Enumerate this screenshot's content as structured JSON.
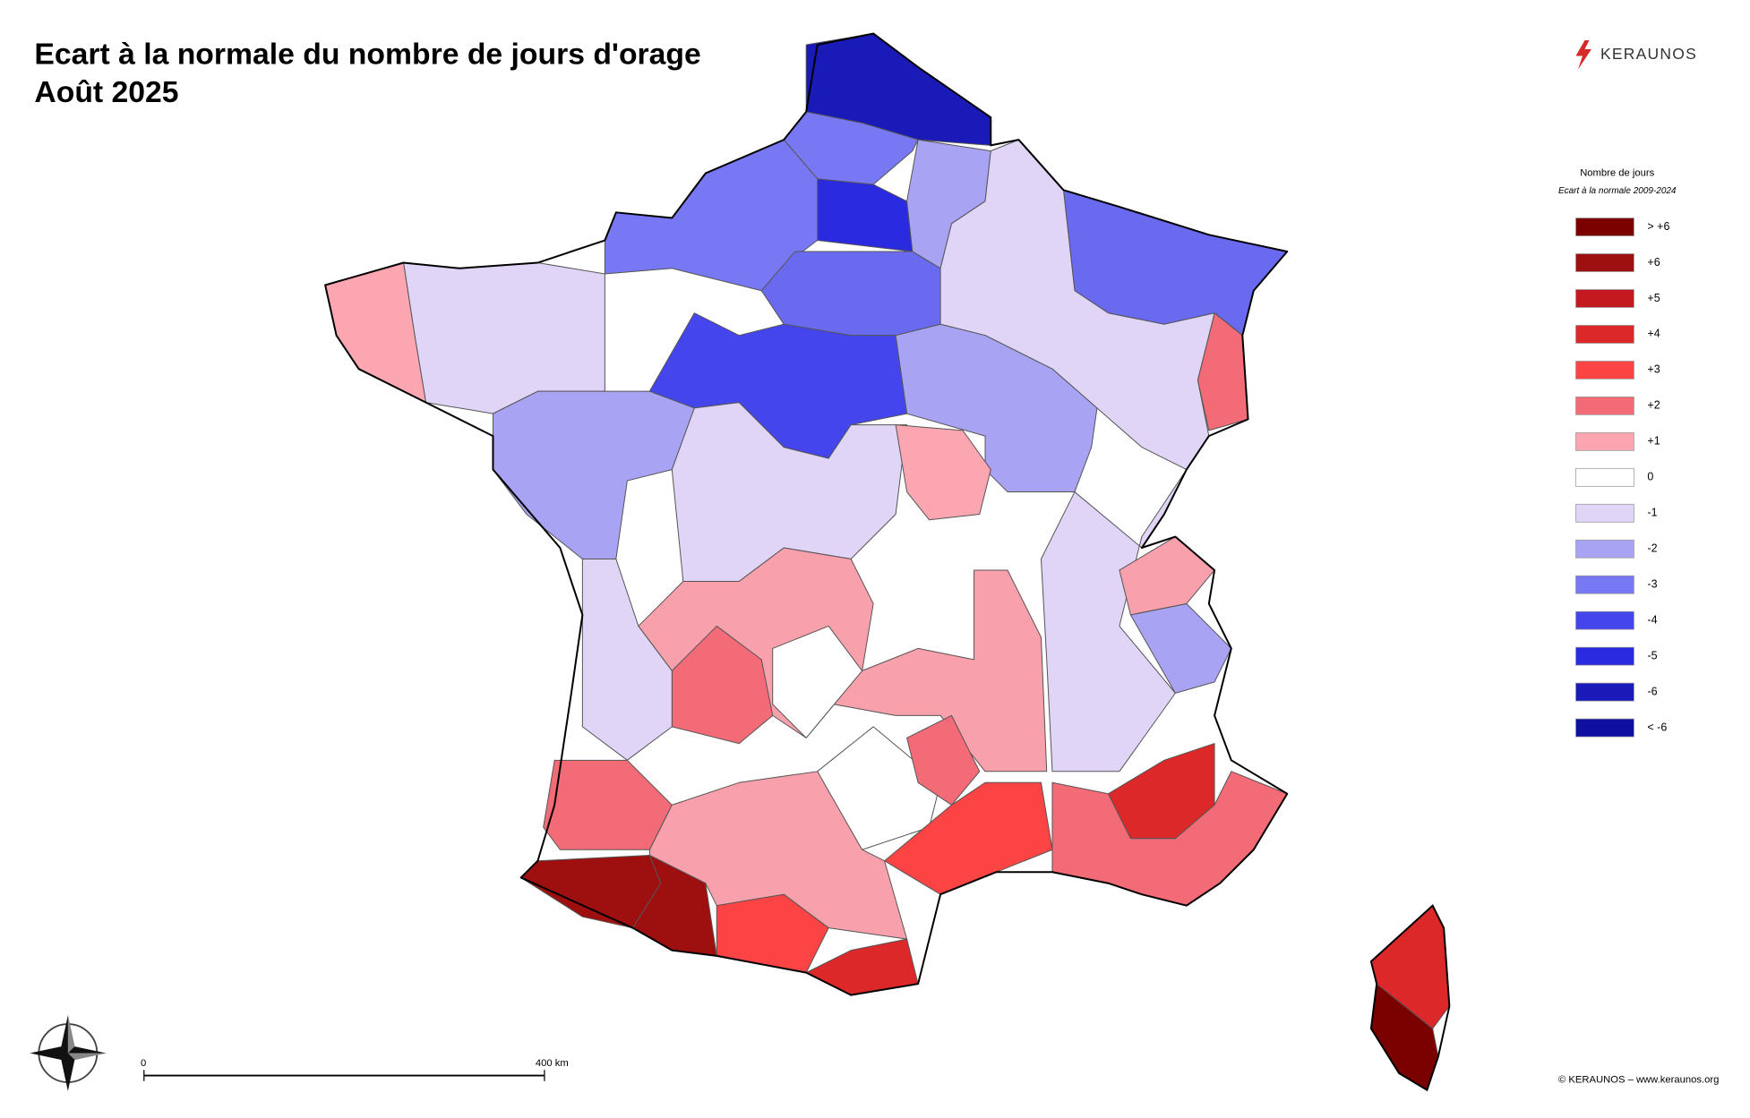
{
  "header": {
    "title": "Ecart à la normale du nombre de jours d'orage",
    "subtitle": "Août 2025"
  },
  "logo": "KERAUNOS",
  "legend": {
    "title": "Nombre de jours",
    "subtitle": "Ecart à la normale 2009-2024",
    "items": [
      {
        "label": "> +6",
        "color": "#7b0000"
      },
      {
        "label": "+6",
        "color": "#9e1010"
      },
      {
        "label": "+5",
        "color": "#c41a1f"
      },
      {
        "label": "+4",
        "color": "#dc2828"
      },
      {
        "label": "+3",
        "color": "#fc4444"
      },
      {
        "label": "+2",
        "color": "#f36b76"
      },
      {
        "label": "+1",
        "color": "#fba6b1"
      },
      {
        "label": "0",
        "color": "#ffffff"
      },
      {
        "label": "-1",
        "color": "#e0d4f7"
      },
      {
        "label": "-2",
        "color": "#a9a3f3"
      },
      {
        "label": "-3",
        "color": "#7878f5"
      },
      {
        "label": "-4",
        "color": "#4545ee"
      },
      {
        "label": "-5",
        "color": "#2a2ae0"
      },
      {
        "label": "-6",
        "color": "#1a1ab8"
      },
      {
        "label": "< -6",
        "color": "#0f0fa0"
      }
    ]
  },
  "map": {
    "regions": [
      "#1a1ab8",
      "#7878f5",
      "#2a2ae0",
      "#7878f5",
      "#a9a3f3",
      "#6a6af0",
      "#4545ee",
      "#6a6af0",
      "#f36b76",
      "#e0d4f7",
      "#e0d4f7",
      "#fba6b1",
      "#a9a3f3",
      "#a9a3f3",
      "#e0d4f7",
      "#fba6b1",
      "#e0d4f7",
      "#f8a0ab",
      "#a9a3f3",
      "#f8a0ab",
      "#ffffff",
      "#f36b76",
      "#ffffff",
      "#fc4444",
      "#f36b76",
      "#dc2828",
      "#f36b76",
      "#f36b76",
      "#f8a0ab",
      "#9e1010",
      "#9e1010",
      "#fc4444",
      "#dc2828",
      "#e0d4f7",
      "#dc2828",
      "#7b0000"
    ]
  },
  "scale_bar": {
    "start": "0",
    "end": "400 km"
  },
  "footer": {
    "copyright": "© KERAUNOS – www.keraunos.org"
  }
}
